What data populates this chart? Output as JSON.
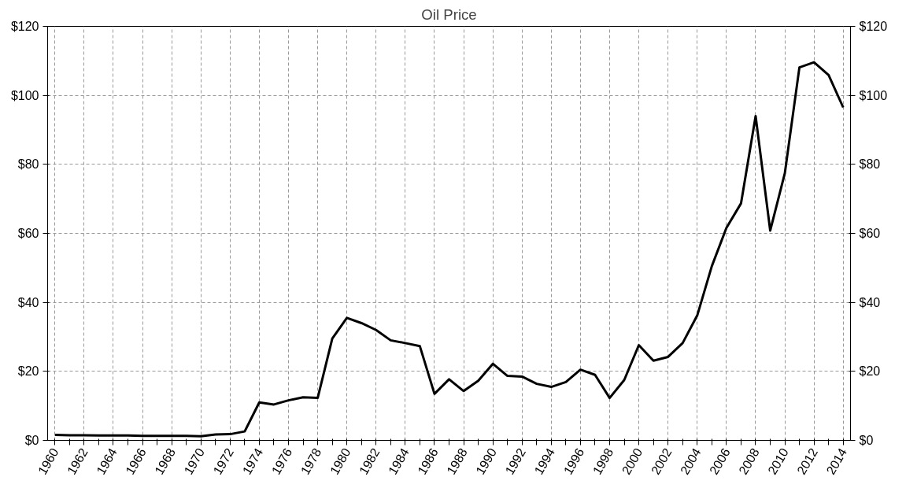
{
  "chart_data": {
    "type": "line",
    "title": "Oil Price",
    "categories": [
      "1960",
      null,
      "1962",
      null,
      "1964",
      null,
      "1966",
      null,
      "1968",
      null,
      "1970",
      null,
      "1972",
      null,
      "1974",
      null,
      "1976",
      null,
      "1978",
      null,
      "1980",
      null,
      "1982",
      null,
      "1984",
      null,
      "1986",
      null,
      "1988",
      null,
      "1990",
      null,
      "1992",
      null,
      "1994",
      null,
      "1996",
      null,
      "1998",
      null,
      "2000",
      null,
      "2002",
      null,
      "2004",
      null,
      "2006",
      null,
      "2008",
      null,
      "2010",
      null,
      "2012",
      null,
      "2014"
    ],
    "series": [
      {
        "color": "#000000",
        "values": [
          1.6,
          1.5,
          1.5,
          1.4,
          1.4,
          1.4,
          1.3,
          1.3,
          1.3,
          1.3,
          1.2,
          1.7,
          1.8,
          2.6,
          11.0,
          10.4,
          11.6,
          12.5,
          12.3,
          29.5,
          35.5,
          34.0,
          32.0,
          29.0,
          28.2,
          27.3,
          13.5,
          17.7,
          14.3,
          17.3,
          22.2,
          18.7,
          18.5,
          16.4,
          15.5,
          16.9,
          20.5,
          19.0,
          12.3,
          17.5,
          27.6,
          23.1,
          24.2,
          28.2,
          36.2,
          50.5,
          61.6,
          68.7,
          94.0,
          60.8,
          77.4,
          108.1,
          109.6,
          105.9,
          96.5
        ]
      }
    ],
    "ylim": [
      0,
      120
    ],
    "yticks": [
      {
        "value": 0,
        "label": "$0"
      },
      {
        "value": 20,
        "label": "$20"
      },
      {
        "value": 40,
        "label": "$40"
      },
      {
        "value": 60,
        "label": "$60"
      },
      {
        "value": 80,
        "label": "$80"
      },
      {
        "value": 100,
        "label": "$100"
      },
      {
        "value": 120,
        "label": "$120"
      }
    ],
    "y2lim": [
      0,
      120
    ],
    "y2ticks": [
      {
        "value": 0,
        "label": "$0"
      },
      {
        "value": 20,
        "label": "$20"
      },
      {
        "value": 40,
        "label": "$40"
      },
      {
        "value": 60,
        "label": "$60"
      },
      {
        "value": 80,
        "label": "$80"
      },
      {
        "value": 100,
        "label": "$100"
      },
      {
        "value": 120,
        "label": "$120"
      }
    ],
    "grid": true,
    "marker": "none",
    "line_style": "solid"
  }
}
